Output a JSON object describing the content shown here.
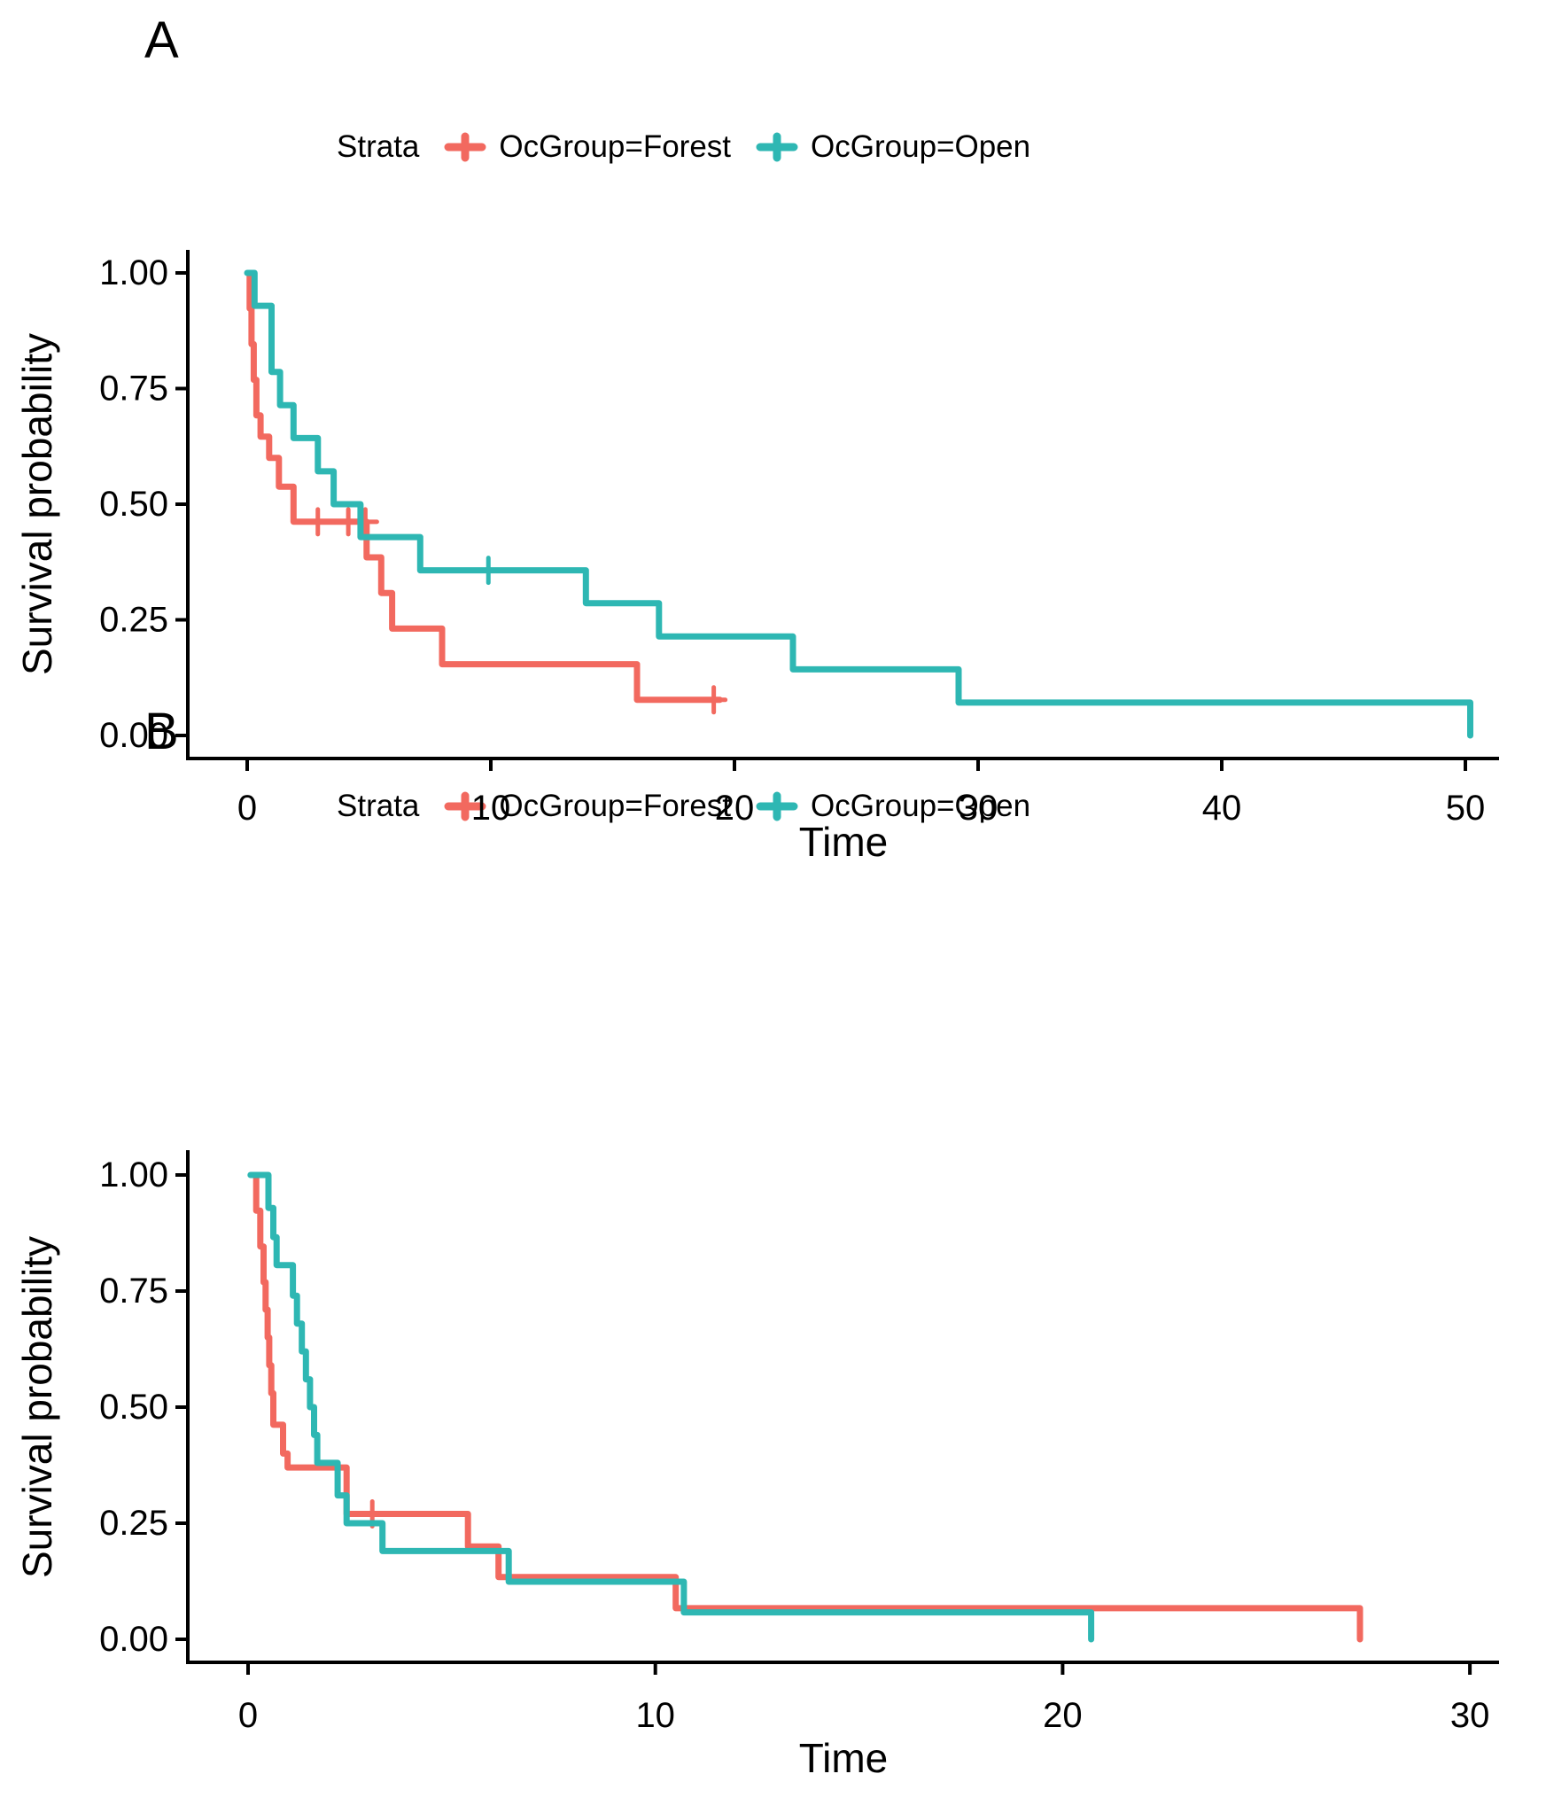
{
  "colors": {
    "forest": "#F2695F",
    "open": "#2EB7B3",
    "axis": "#000000"
  },
  "chart_data": [
    {
      "type": "line",
      "subtype": "kaplan-meier-step",
      "panel_label": "A",
      "legend_title": "Strata",
      "xlabel": "Time",
      "ylabel": "Survival probability",
      "x_ticks": [
        0,
        10,
        20,
        30,
        40,
        50
      ],
      "y_ticks": [
        {
          "value": 1.0,
          "label": "1.00"
        },
        {
          "value": 0.75,
          "label": "0.75"
        },
        {
          "value": 0.5,
          "label": "0.50"
        },
        {
          "value": 0.25,
          "label": "0.25"
        },
        {
          "value": 0.0,
          "label": "0.00"
        }
      ],
      "xlim": [
        0,
        52
      ],
      "ylim": [
        0,
        1
      ],
      "grid": false,
      "legend_position": "top",
      "series": [
        {
          "name": "OcGroup=Forest",
          "color_key": "forest",
          "points": [
            [
              0.05,
              1.0
            ],
            [
              0.1,
              0.923
            ],
            [
              0.18,
              0.846
            ],
            [
              0.27,
              0.769
            ],
            [
              0.38,
              0.692
            ],
            [
              0.55,
              0.646
            ],
            [
              0.9,
              0.6
            ],
            [
              1.3,
              0.538
            ],
            [
              1.9,
              0.462
            ],
            [
              4.9,
              0.385
            ],
            [
              5.5,
              0.308
            ],
            [
              5.95,
              0.231
            ],
            [
              8.0,
              0.154
            ],
            [
              16.0,
              0.077
            ],
            [
              19.4,
              0.077
            ]
          ],
          "censors": [
            [
              2.9,
              0.462
            ],
            [
              4.15,
              0.462
            ],
            [
              4.85,
              0.462
            ],
            [
              19.15,
              0.077
            ]
          ]
        },
        {
          "name": "OcGroup=Open",
          "color_key": "open",
          "points": [
            [
              0.0,
              1.0
            ],
            [
              0.3,
              0.929
            ],
            [
              1.0,
              0.786
            ],
            [
              1.35,
              0.714
            ],
            [
              1.9,
              0.643
            ],
            [
              2.9,
              0.571
            ],
            [
              3.55,
              0.5
            ],
            [
              4.65,
              0.429
            ],
            [
              7.1,
              0.357
            ],
            [
              13.9,
              0.286
            ],
            [
              16.9,
              0.214
            ],
            [
              22.4,
              0.143
            ],
            [
              29.2,
              0.071
            ],
            [
              50.2,
              0.0
            ]
          ],
          "censors": [
            [
              9.9,
              0.357
            ]
          ]
        }
      ]
    },
    {
      "type": "line",
      "subtype": "kaplan-meier-step",
      "panel_label": "B",
      "legend_title": "Strata",
      "xlabel": "Time",
      "ylabel": "Survival probability",
      "x_ticks": [
        0,
        10,
        20,
        30
      ],
      "y_ticks": [
        {
          "value": 1.0,
          "label": "1.00"
        },
        {
          "value": 0.75,
          "label": "0.75"
        },
        {
          "value": 0.5,
          "label": "0.50"
        },
        {
          "value": 0.25,
          "label": "0.25"
        },
        {
          "value": 0.0,
          "label": "0.00"
        }
      ],
      "xlim": [
        0,
        31
      ],
      "ylim": [
        0,
        1
      ],
      "grid": false,
      "legend_position": "top",
      "series": [
        {
          "name": "OcGroup=Forest",
          "color_key": "forest",
          "points": [
            [
              0.15,
              1.0
            ],
            [
              0.2,
              0.923
            ],
            [
              0.3,
              0.846
            ],
            [
              0.38,
              0.769
            ],
            [
              0.43,
              0.71
            ],
            [
              0.48,
              0.65
            ],
            [
              0.52,
              0.59
            ],
            [
              0.57,
              0.53
            ],
            [
              0.62,
              0.462
            ],
            [
              0.86,
              0.4
            ],
            [
              0.97,
              0.37
            ],
            [
              2.42,
              0.27
            ],
            [
              5.4,
              0.2
            ],
            [
              6.15,
              0.134
            ],
            [
              10.5,
              0.067
            ],
            [
              27.3,
              0.0
            ]
          ],
          "censors": [
            [
              3.05,
              0.27
            ]
          ]
        },
        {
          "name": "OcGroup=Open",
          "color_key": "open",
          "points": [
            [
              0.06,
              1.0
            ],
            [
              0.5,
              0.929
            ],
            [
              0.62,
              0.866
            ],
            [
              0.7,
              0.806
            ],
            [
              1.1,
              0.74
            ],
            [
              1.2,
              0.68
            ],
            [
              1.32,
              0.62
            ],
            [
              1.42,
              0.56
            ],
            [
              1.52,
              0.5
            ],
            [
              1.62,
              0.44
            ],
            [
              1.7,
              0.38
            ],
            [
              2.2,
              0.31
            ],
            [
              2.42,
              0.25
            ],
            [
              3.3,
              0.19
            ],
            [
              6.4,
              0.124
            ],
            [
              10.7,
              0.058
            ],
            [
              20.7,
              0.0
            ]
          ],
          "censors": []
        }
      ]
    }
  ]
}
